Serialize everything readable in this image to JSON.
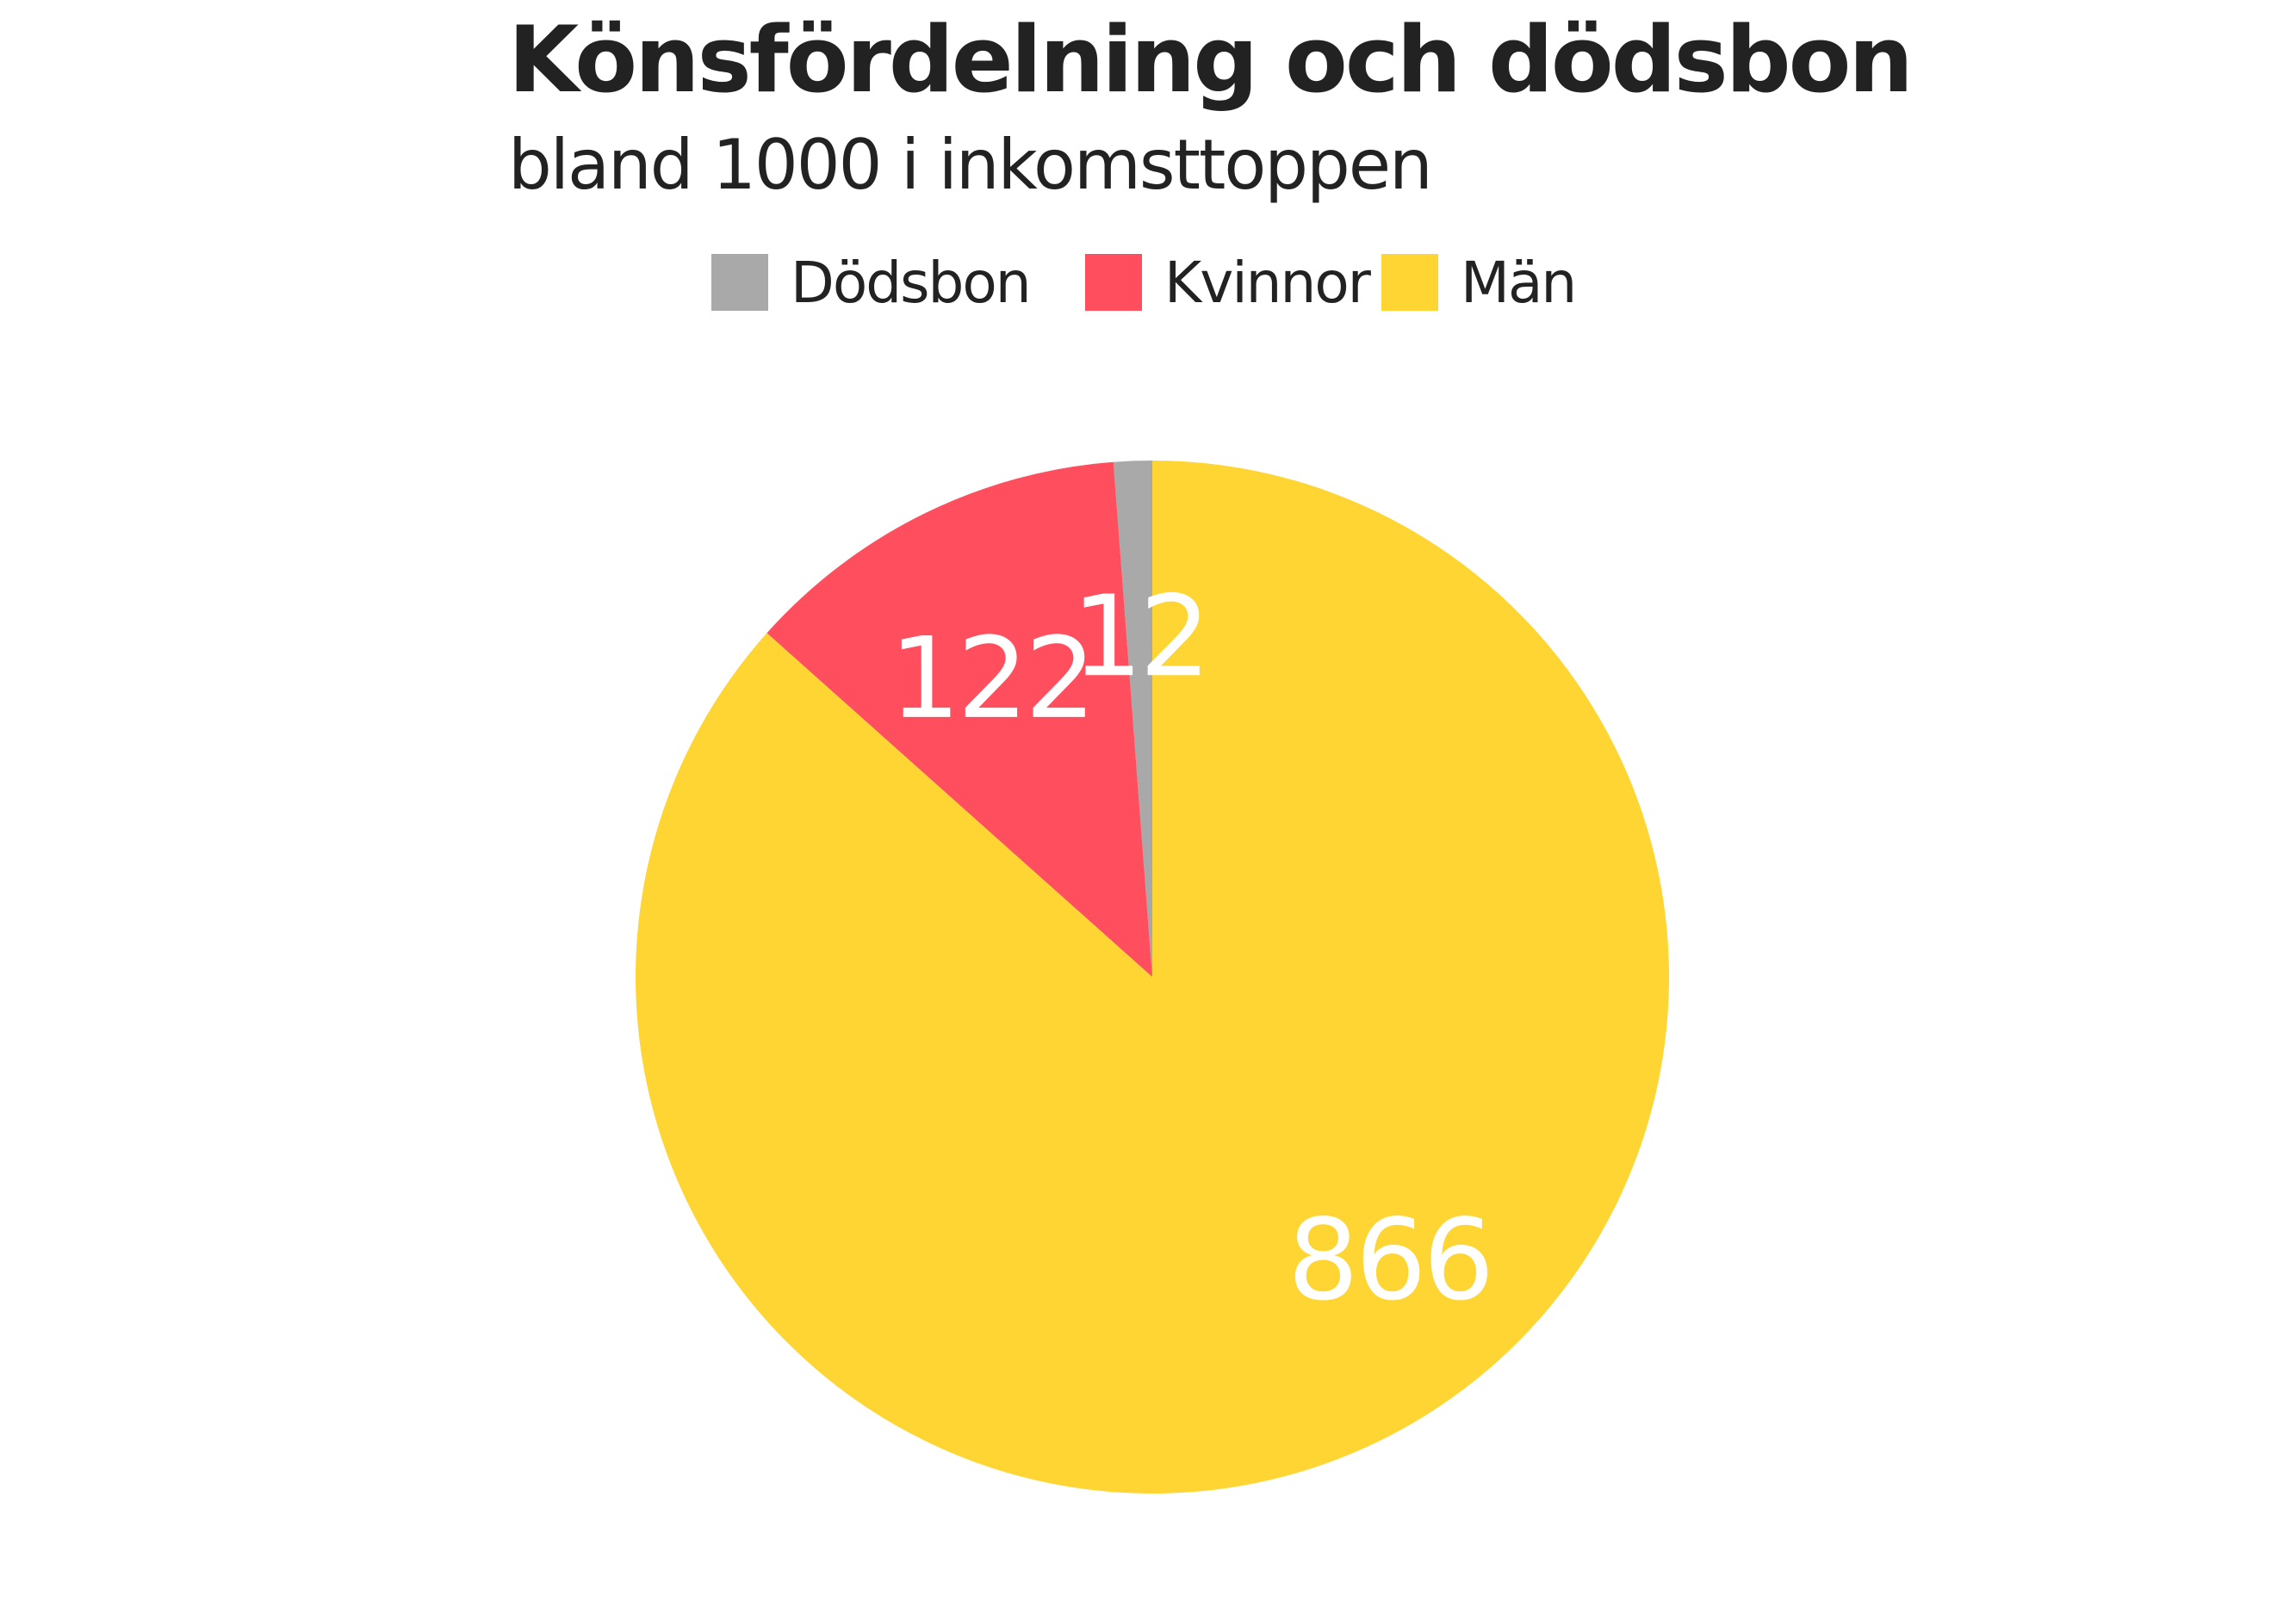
{
  "chart_data": {
    "type": "pie",
    "title": "Könsfördelning och dödsbon",
    "subtitle": "bland 1000 i inkomsttoppen",
    "legend": {
      "placement": "top-center",
      "entries": [
        {
          "label": "Dödsbon",
          "color": "#a9a9a9"
        },
        {
          "label": "Kvinnor",
          "color": "#ff4f5e"
        },
        {
          "label": "Män",
          "color": "#fed533"
        }
      ]
    },
    "slices": [
      {
        "name": "Dödsbon",
        "value": 12,
        "label": "12",
        "color": "#a9a9a9"
      },
      {
        "name": "Kvinnor",
        "value": 122,
        "label": "122",
        "color": "#ff4f5e"
      },
      {
        "name": "Män",
        "value": 866,
        "label": "866",
        "color": "#fed533"
      }
    ]
  }
}
